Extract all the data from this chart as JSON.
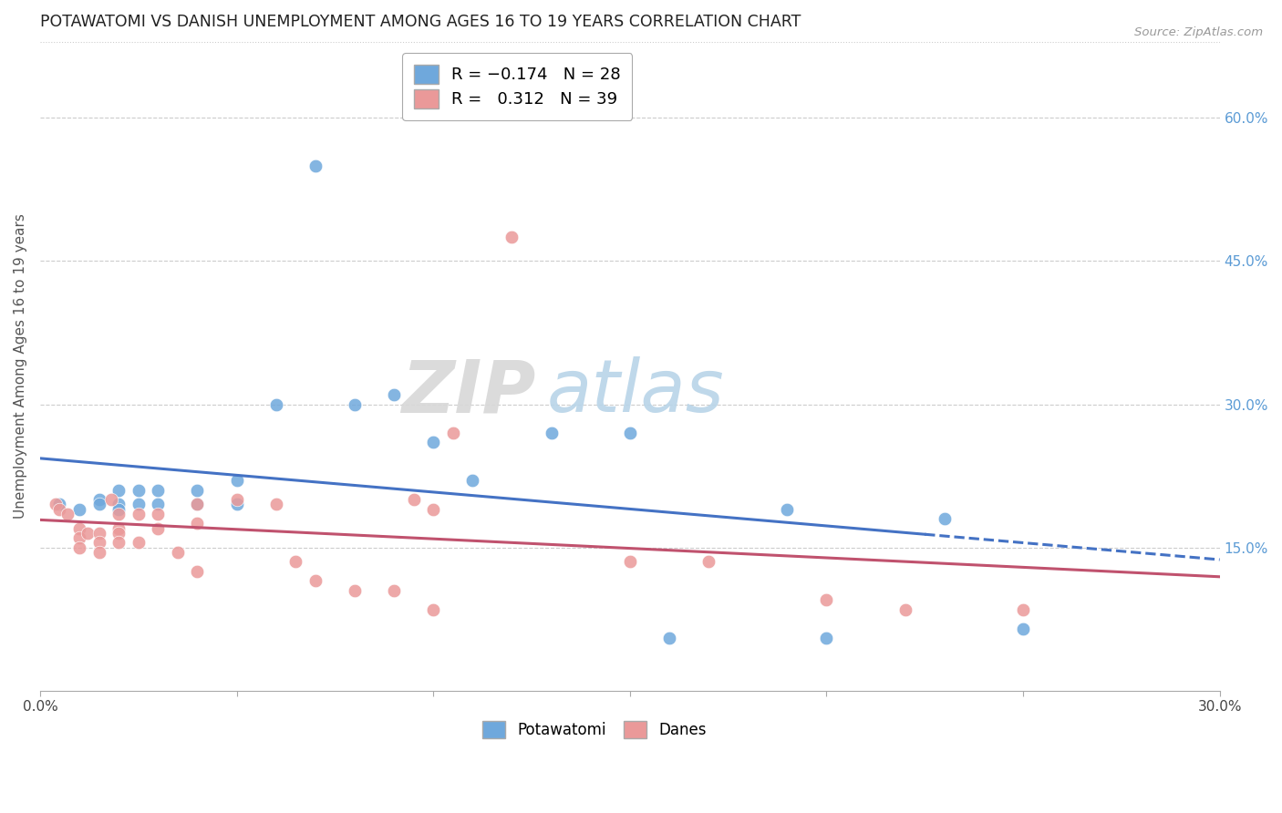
{
  "title": "POTAWATOMI VS DANISH UNEMPLOYMENT AMONG AGES 16 TO 19 YEARS CORRELATION CHART",
  "source": "Source: ZipAtlas.com",
  "ylabel": "Unemployment Among Ages 16 to 19 years",
  "xlim": [
    0.0,
    0.3
  ],
  "ylim": [
    0.0,
    0.68
  ],
  "xticks": [
    0.0,
    0.05,
    0.1,
    0.15,
    0.2,
    0.25,
    0.3
  ],
  "yticks_right": [
    0.15,
    0.3,
    0.45,
    0.6
  ],
  "ytick_labels_right": [
    "15.0%",
    "30.0%",
    "45.0%",
    "60.0%"
  ],
  "potawatomi_R": -0.174,
  "potawatomi_N": 28,
  "danes_R": 0.312,
  "danes_N": 39,
  "potawatomi_color": "#6fa8dc",
  "danes_color": "#ea9999",
  "potawatomi_line_color": "#4472c4",
  "danes_line_color": "#c0526e",
  "background_color": "#ffffff",
  "potawatomi_x": [
    0.005,
    0.01,
    0.015,
    0.015,
    0.02,
    0.02,
    0.02,
    0.025,
    0.025,
    0.03,
    0.03,
    0.04,
    0.04,
    0.05,
    0.05,
    0.06,
    0.07,
    0.08,
    0.09,
    0.1,
    0.11,
    0.13,
    0.15,
    0.16,
    0.19,
    0.2,
    0.23,
    0.25
  ],
  "potawatomi_y": [
    0.195,
    0.19,
    0.2,
    0.195,
    0.195,
    0.19,
    0.21,
    0.195,
    0.21,
    0.195,
    0.21,
    0.21,
    0.195,
    0.22,
    0.195,
    0.3,
    0.55,
    0.3,
    0.31,
    0.26,
    0.22,
    0.27,
    0.27,
    0.055,
    0.19,
    0.055,
    0.18,
    0.065
  ],
  "danes_x": [
    0.004,
    0.005,
    0.007,
    0.01,
    0.01,
    0.01,
    0.012,
    0.015,
    0.015,
    0.015,
    0.018,
    0.02,
    0.02,
    0.02,
    0.02,
    0.025,
    0.025,
    0.03,
    0.03,
    0.035,
    0.04,
    0.04,
    0.04,
    0.05,
    0.06,
    0.065,
    0.07,
    0.08,
    0.09,
    0.095,
    0.1,
    0.1,
    0.105,
    0.12,
    0.15,
    0.17,
    0.2,
    0.22,
    0.25
  ],
  "danes_y": [
    0.195,
    0.19,
    0.185,
    0.17,
    0.16,
    0.15,
    0.165,
    0.165,
    0.155,
    0.145,
    0.2,
    0.185,
    0.17,
    0.165,
    0.155,
    0.185,
    0.155,
    0.185,
    0.17,
    0.145,
    0.195,
    0.175,
    0.125,
    0.2,
    0.195,
    0.135,
    0.115,
    0.105,
    0.105,
    0.2,
    0.19,
    0.085,
    0.27,
    0.475,
    0.135,
    0.135,
    0.095,
    0.085,
    0.085
  ],
  "pot_line_x_solid_end": 0.225,
  "pot_line_x_dash_start": 0.225,
  "pot_line_x_end": 0.3
}
